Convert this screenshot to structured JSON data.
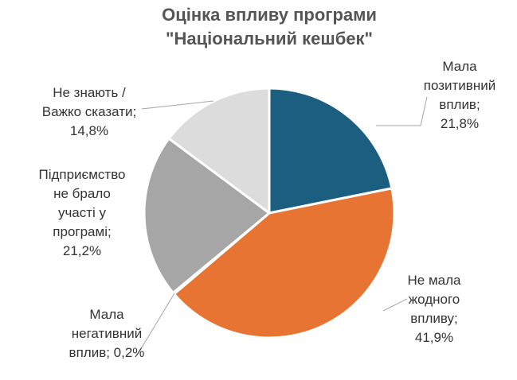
{
  "chart_data": {
    "type": "pie",
    "title_lines": [
      "Оцінка впливу програми",
      "\"Національний кешбек\""
    ],
    "slices": [
      {
        "label": "Мала позитивний вплив",
        "value": 21.8,
        "color": "#1b5e80",
        "label_lines": [
          "Мала",
          "позитивний",
          "вплив;",
          "21,8%"
        ]
      },
      {
        "label": "Не мала жодного впливу",
        "value": 41.9,
        "color": "#e87434",
        "label_lines": [
          "Не мала",
          "жодного",
          "впливу;",
          "41,9%"
        ]
      },
      {
        "label": "Мала негативний вплив",
        "value": 0.2,
        "color": "#c8c8c8",
        "label_lines": [
          "Мала",
          "негативний",
          "вплив; 0,2%"
        ]
      },
      {
        "label": "Підприємство не брало участі у програмі",
        "value": 21.2,
        "color": "#a6a6a6",
        "label_lines": [
          "Підприємство",
          "не брало",
          "участі у",
          "програмі;",
          "21,2%"
        ]
      },
      {
        "label": "Не знають / Важко сказати",
        "value": 14.8,
        "color": "#dcdcdc",
        "label_lines": [
          "Не знають /",
          "Важко сказати;",
          "14,8%"
        ]
      }
    ],
    "start_angle_deg": 0,
    "direction": "clockwise",
    "legend": "none"
  }
}
